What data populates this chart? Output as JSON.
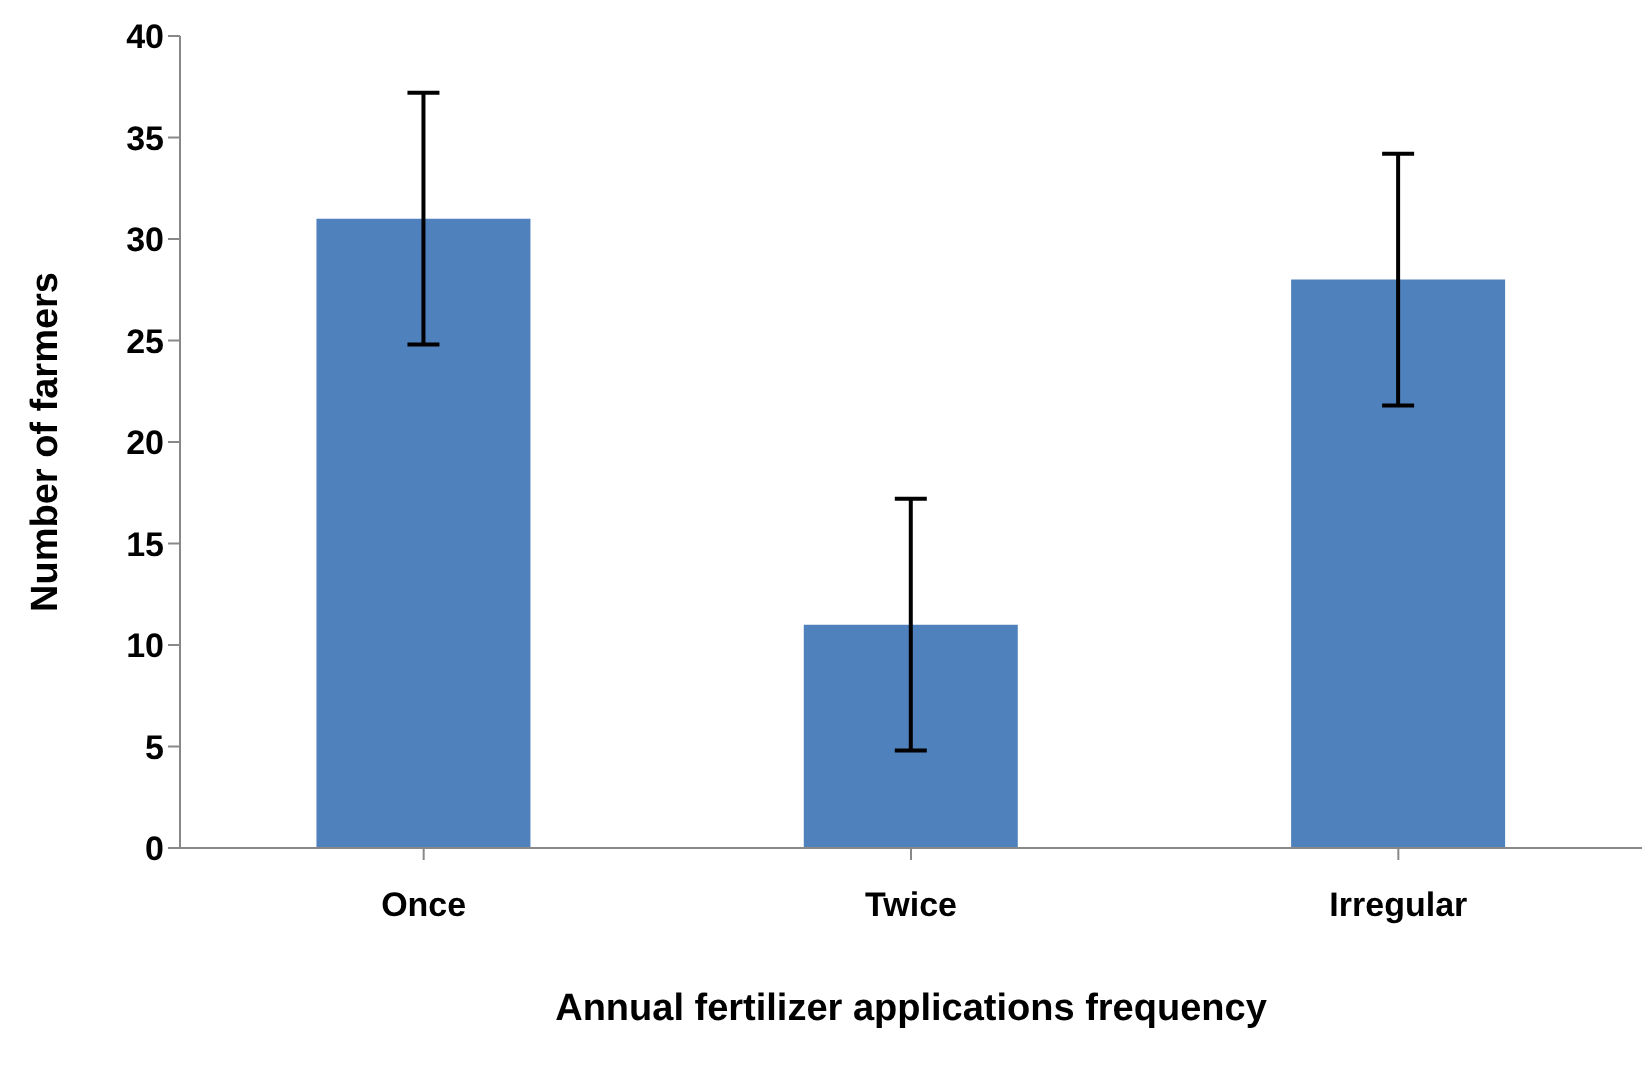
{
  "chart_data": {
    "type": "bar",
    "xlabel": "Annual fertilizer applications  frequency",
    "ylabel": "Number of farmers",
    "categories": [
      "Once",
      "Twice",
      "Irregular"
    ],
    "values": [
      31,
      11,
      28
    ],
    "errors": [
      6.2,
      6.2,
      6.2
    ],
    "color": "#4f81bd",
    "ylim": [
      0,
      40
    ],
    "yticks": [
      0,
      5,
      10,
      15,
      20,
      25,
      30,
      35,
      40
    ],
    "grid": false,
    "legend": false
  }
}
